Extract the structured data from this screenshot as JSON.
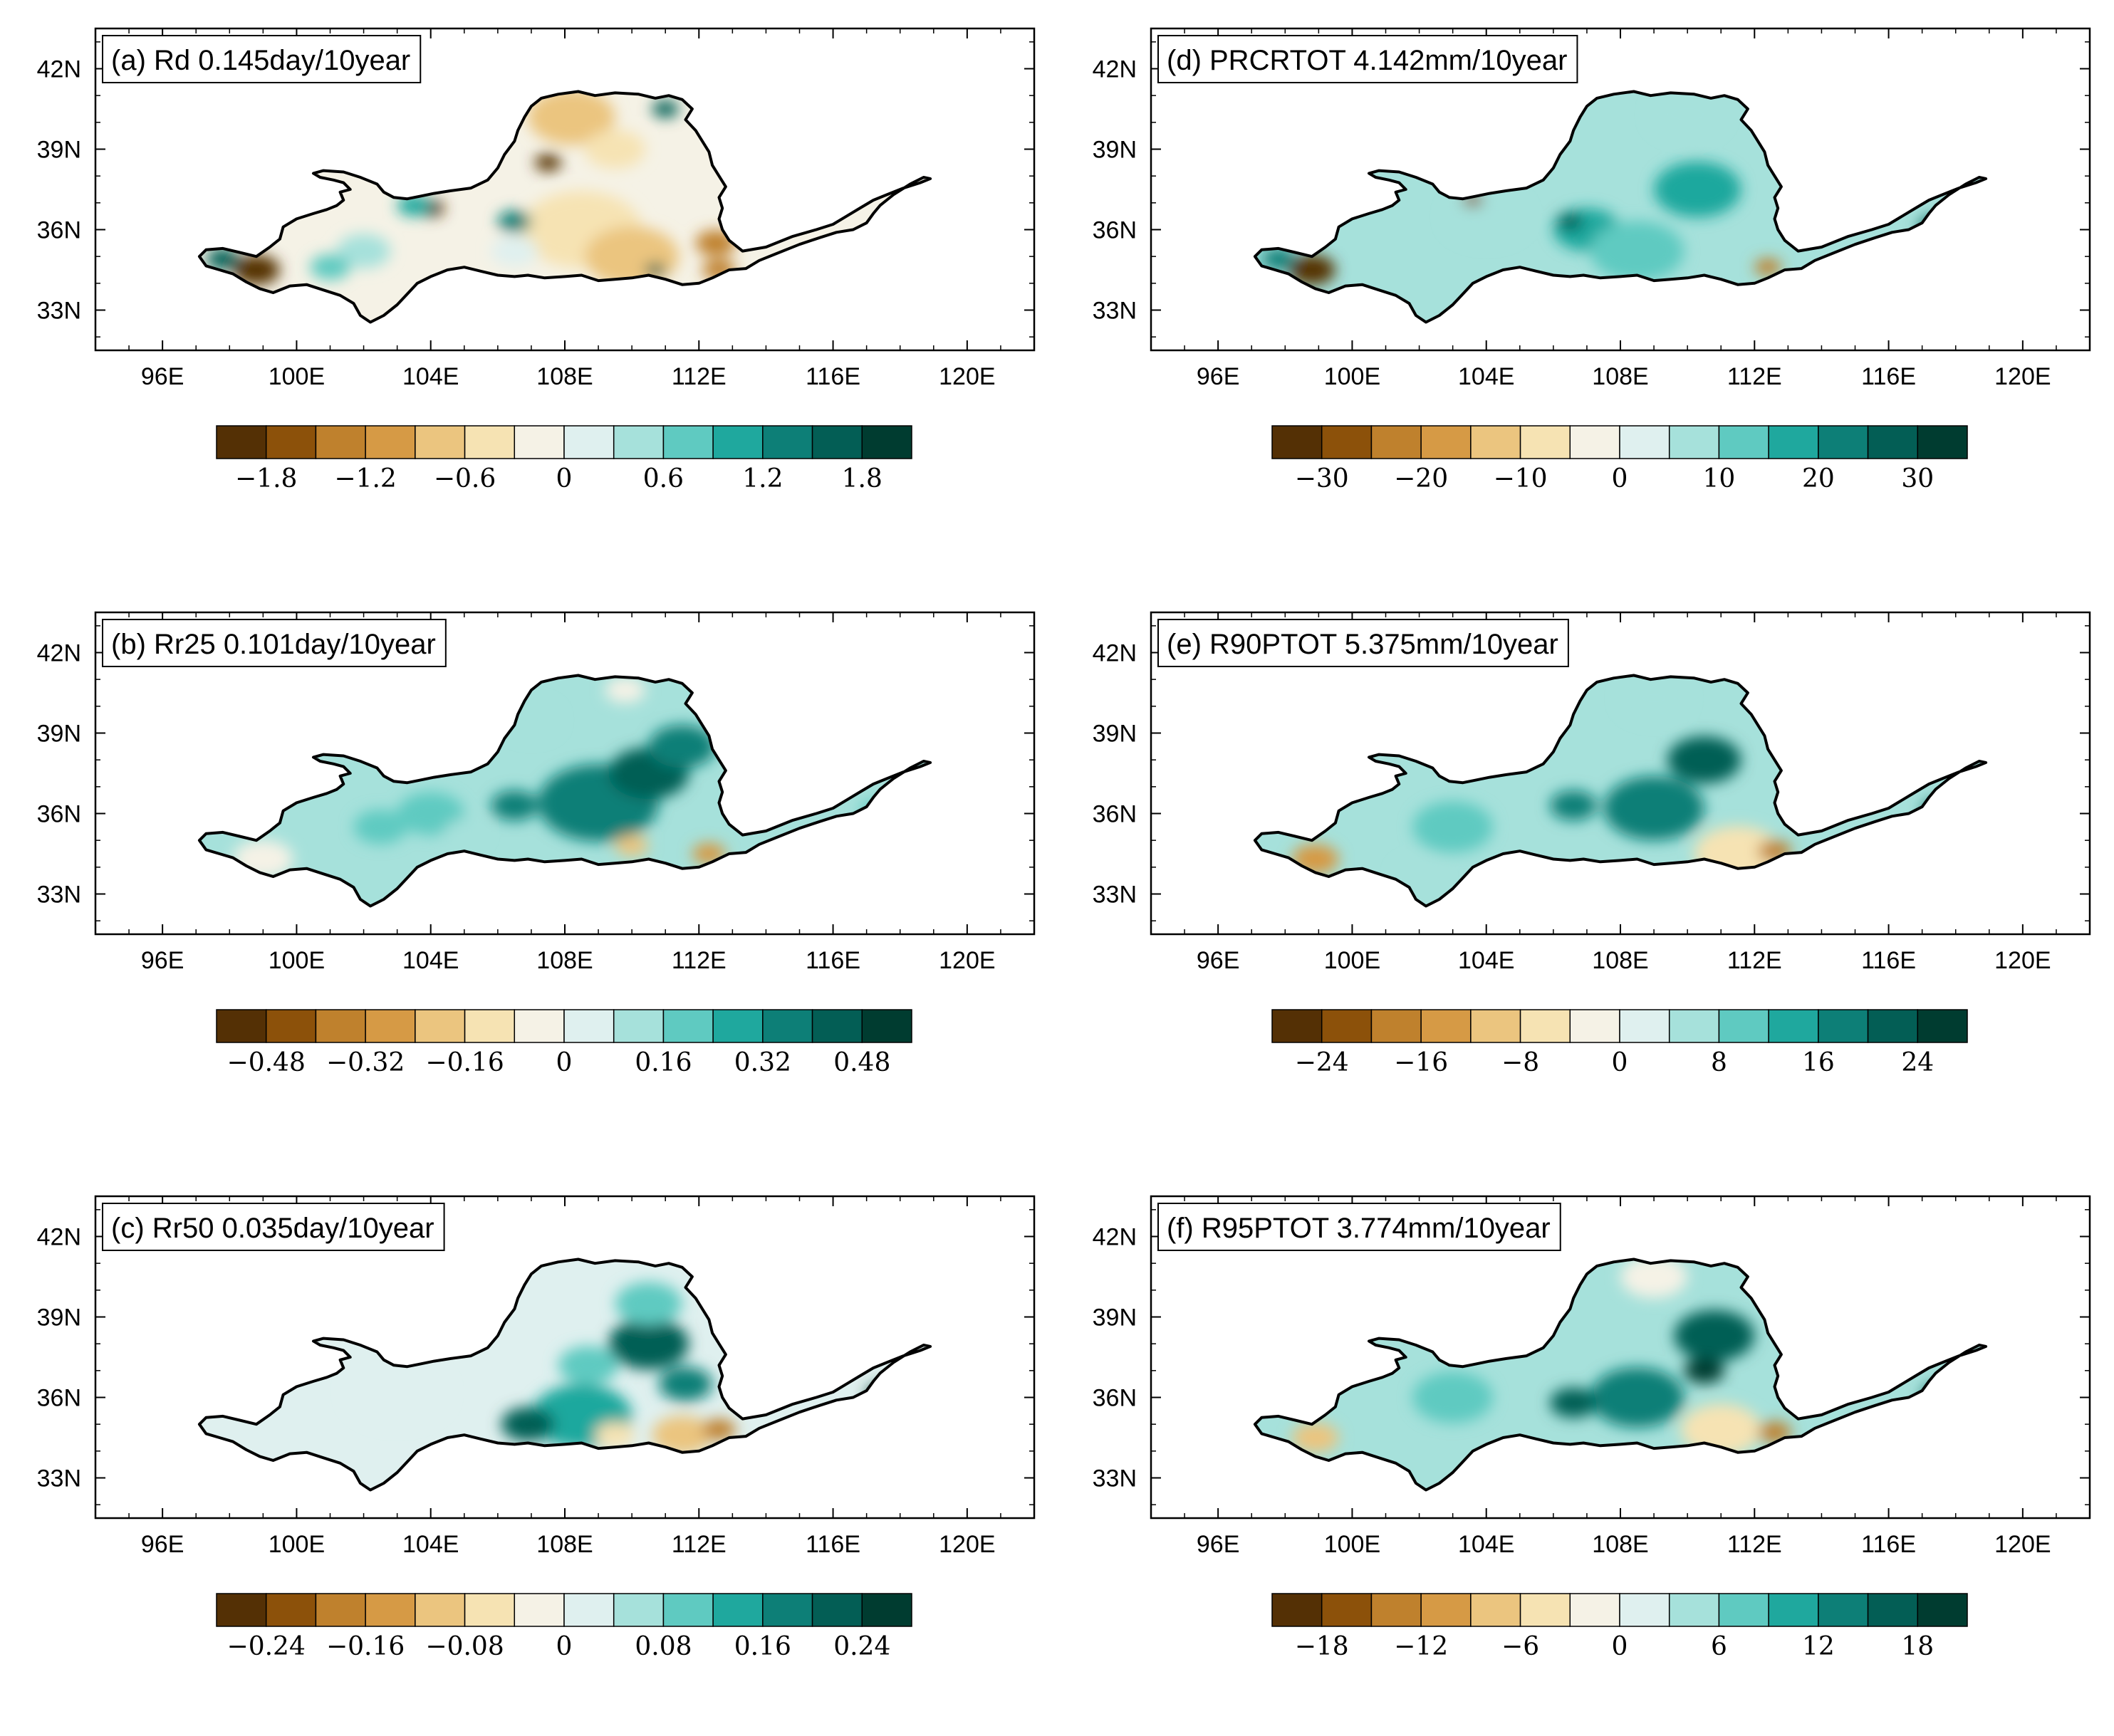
{
  "figure": {
    "description_free": true
  },
  "colors": {
    "palette": [
      "#543005",
      "#8c510a",
      "#bf812d",
      "#d69a45",
      "#ebc57f",
      "#f6e3b3",
      "#f5f2e6",
      "#dff0ef",
      "#a6e1db",
      "#5fcac1",
      "#1fa89e",
      "#0d7f77",
      "#035e55",
      "#003c30"
    ],
    "boundary": "#000000",
    "frame": "#000000"
  },
  "axes": {
    "x_ticks": [
      "96E",
      "100E",
      "104E",
      "108E",
      "112E",
      "116E",
      "120E"
    ],
    "x_values": [
      96,
      100,
      104,
      108,
      112,
      116,
      120
    ],
    "y_ticks": [
      "42N",
      "39N",
      "36N",
      "33N"
    ],
    "y_values": [
      42,
      39,
      36,
      33
    ],
    "xlim": [
      94,
      122
    ],
    "ylim": [
      31.5,
      43.5
    ]
  },
  "chart_data": [
    {
      "type": "heatmap",
      "panel": "a",
      "title": "(a) Rd 0.145day/10year",
      "colorbar_labels": [
        "−1.8",
        "−1.2",
        "−0.6",
        "0",
        "0.6",
        "1.2",
        "1.8"
      ],
      "colorbar_values": [
        -1.8,
        -1.2,
        -0.6,
        0,
        0.6,
        1.2,
        1.8
      ]
    },
    {
      "type": "heatmap",
      "panel": "b",
      "title": "(b) Rr25 0.101day/10year",
      "colorbar_labels": [
        "−0.48",
        "−0.32",
        "−0.16",
        "0",
        "0.16",
        "0.32",
        "0.48"
      ],
      "colorbar_values": [
        -0.48,
        -0.32,
        -0.16,
        0,
        0.16,
        0.32,
        0.48
      ]
    },
    {
      "type": "heatmap",
      "panel": "c",
      "title": "(c) Rr50 0.035day/10year",
      "colorbar_labels": [
        "−0.24",
        "−0.16",
        "−0.08",
        "0",
        "0.08",
        "0.16",
        "0.24"
      ],
      "colorbar_values": [
        -0.24,
        -0.16,
        -0.08,
        0,
        0.08,
        0.16,
        0.24
      ]
    },
    {
      "type": "heatmap",
      "panel": "d",
      "title": "(d) PRCRTOT 4.142mm/10year",
      "colorbar_labels": [
        "−30",
        "−20",
        "−10",
        "0",
        "10",
        "20",
        "30"
      ],
      "colorbar_values": [
        -30,
        -20,
        -10,
        0,
        10,
        20,
        30
      ]
    },
    {
      "type": "heatmap",
      "panel": "e",
      "title": "(e) R90PTOT 5.375mm/10year",
      "colorbar_labels": [
        "−24",
        "−16",
        "−8",
        "0",
        "8",
        "16",
        "24"
      ],
      "colorbar_values": [
        -24,
        -16,
        -8,
        0,
        8,
        16,
        24
      ]
    },
    {
      "type": "heatmap",
      "panel": "f",
      "title": "(f) R95PTOT 3.774mm/10year",
      "colorbar_labels": [
        "−18",
        "−12",
        "−6",
        "0",
        "6",
        "12",
        "18"
      ],
      "colorbar_values": [
        -18,
        -12,
        -6,
        0,
        6,
        12,
        18
      ]
    }
  ]
}
